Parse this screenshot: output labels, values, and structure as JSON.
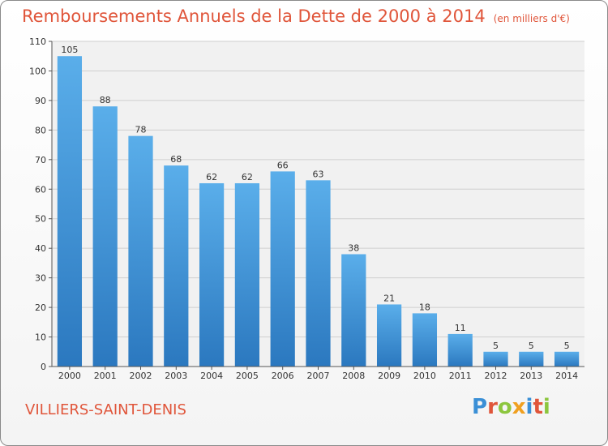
{
  "header": {
    "title": "Remboursements Annuels de la Dette de 2000 à 2014",
    "unit": "(en milliers d'€)"
  },
  "commune": "VILLIERS-SAINT-DENIS",
  "logo": {
    "text": "Proxiti",
    "letters": [
      {
        "ch": "P",
        "color": "#3a8fd6"
      },
      {
        "ch": "r",
        "color": "#e0553a"
      },
      {
        "ch": "o",
        "color": "#8cc63e"
      },
      {
        "ch": "x",
        "color": "#f0a020"
      },
      {
        "ch": "i",
        "color": "#3a8fd6"
      },
      {
        "ch": "t",
        "color": "#e0553a"
      },
      {
        "ch": "i",
        "color": "#8cc63e"
      }
    ]
  },
  "colors": {
    "title": "#e0553a",
    "bar_top": "#5aaeea",
    "bar_bottom": "#2b78bf",
    "grid": "#cfcfcf",
    "plot_bg": "#f1f1f1"
  },
  "chart_data": {
    "type": "bar",
    "categories": [
      "2000",
      "2001",
      "2002",
      "2003",
      "2004",
      "2005",
      "2006",
      "2007",
      "2008",
      "2009",
      "2010",
      "2011",
      "2012",
      "2013",
      "2014"
    ],
    "values": [
      105,
      88,
      78,
      68,
      62,
      62,
      66,
      63,
      38,
      21,
      18,
      11,
      5,
      5,
      5
    ],
    "ylim": [
      0,
      110
    ],
    "yticks": [
      0,
      10,
      20,
      30,
      40,
      50,
      60,
      70,
      80,
      90,
      100,
      110
    ],
    "grid": true,
    "data_labels": true
  }
}
